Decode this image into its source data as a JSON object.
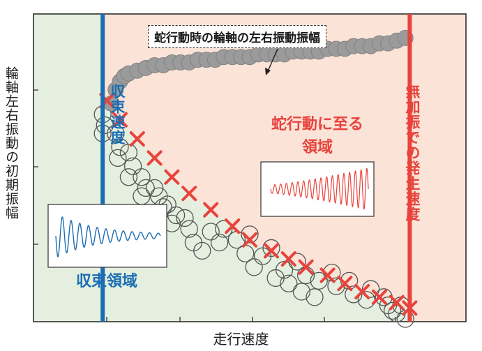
{
  "chart_data": {
    "type": "scatter",
    "xlabel": "走行速度",
    "ylabel": "輪軸左右振動の初期振幅",
    "xlim": [
      0,
      10
    ],
    "ylim": [
      0,
      10
    ],
    "convergence_speed": 1.6,
    "onset_speed": 8.7,
    "colors": {
      "convergence": "#1b6db3",
      "hunting": "#e8433c",
      "region_green": "#e4efe0",
      "region_pink": "#fbe3d8",
      "amplitude_points": "#9b9b9b",
      "circles": "#555555"
    },
    "series": [
      {
        "marker": "cross",
        "x": [
          1.7,
          2.0,
          2.4,
          2.8,
          3.2,
          3.6,
          4.1,
          4.6,
          5.0,
          5.5,
          5.9,
          6.3,
          6.8,
          7.2,
          7.6,
          8.0,
          8.4,
          8.7
        ],
        "y": [
          8.1,
          7.4,
          6.7,
          6.0,
          5.3,
          4.7,
          4.1,
          3.5,
          3.0,
          2.6,
          2.3,
          2.0,
          1.7,
          1.4,
          1.1,
          0.9,
          0.7,
          0.5
        ]
      },
      {
        "marker": "open-circle",
        "x": [
          1.6,
          1.65,
          1.6,
          1.9,
          2.0,
          1.95,
          2.2,
          2.3,
          2.2,
          2.5,
          2.6,
          2.5,
          2.9,
          3.0,
          2.8,
          3.3,
          3.2,
          3.1,
          3.6,
          3.7,
          3.5,
          4.1,
          3.9,
          4.4,
          4.3,
          4.7,
          4.9,
          5.0,
          5.3,
          5.1,
          5.6,
          5.5,
          5.8,
          5.9,
          6.2,
          6.3,
          6.1,
          6.6,
          6.5,
          7.0,
          6.9,
          7.4,
          7.3,
          7.7,
          7.8,
          8.1,
          8.2,
          8.3,
          8.5,
          8.6,
          8.4
        ],
        "y": [
          7.6,
          7.2,
          6.9,
          6.9,
          6.4,
          6.0,
          6.2,
          5.7,
          5.3,
          5.3,
          4.9,
          4.6,
          4.6,
          4.2,
          4.9,
          3.9,
          3.6,
          4.3,
          3.4,
          2.9,
          3.8,
          3.3,
          2.6,
          3.4,
          2.9,
          3.0,
          2.5,
          3.2,
          2.4,
          2.0,
          1.6,
          2.7,
          1.9,
          1.4,
          1.1,
          1.7,
          2.2,
          1.5,
          0.9,
          1.3,
          1.8,
          1.0,
          1.5,
          0.8,
          1.2,
          0.9,
          0.6,
          0.4,
          0.6,
          0.1,
          0.3
        ]
      },
      {
        "marker": "filled-circle",
        "x": [
          1.8,
          1.9,
          2.0,
          2.1,
          2.2,
          2.4,
          2.6,
          2.8,
          3.0,
          3.2,
          3.4,
          3.6,
          3.8,
          4.0,
          4.2,
          4.4,
          4.6,
          4.8,
          5.0,
          5.2,
          5.4,
          5.6,
          5.8,
          6.0,
          6.2,
          6.4,
          6.6,
          6.8,
          7.0,
          7.2,
          7.4,
          7.6,
          7.8,
          8.0,
          8.2,
          8.4,
          8.6
        ],
        "y": [
          8.0,
          8.5,
          8.8,
          9.0,
          9.1,
          9.2,
          9.3,
          9.4,
          9.4,
          9.5,
          9.5,
          9.5,
          9.6,
          9.6,
          9.6,
          9.7,
          9.7,
          9.7,
          9.7,
          9.8,
          9.8,
          9.8,
          9.8,
          9.9,
          9.9,
          9.9,
          9.9,
          10.0,
          10.0,
          10.0,
          10.1,
          10.1,
          10.1,
          10.2,
          10.2,
          10.3,
          10.4
        ]
      }
    ]
  },
  "labels": {
    "convergence_speed": "収束速度",
    "onset_speed": "無加振での発生速度",
    "amplitude_callout": "蛇行動時の輪軸の左右振動振幅",
    "hunting_region": "蛇行動に至る領域",
    "convergence_region": "収束領域"
  }
}
